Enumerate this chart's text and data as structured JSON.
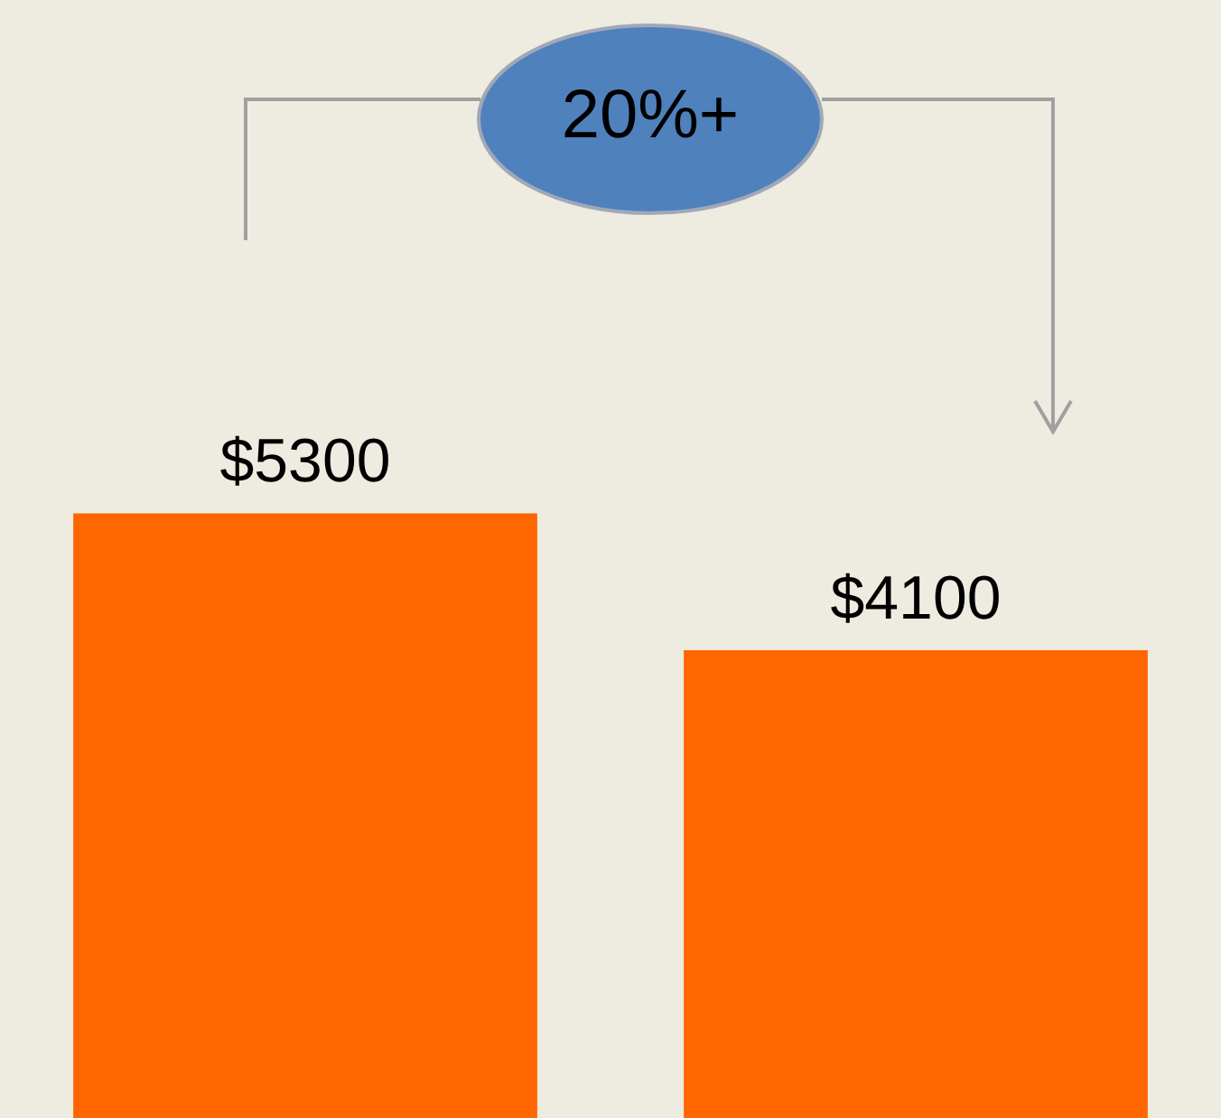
{
  "chart_data": {
    "type": "bar",
    "categories": [
      null,
      null
    ],
    "values": [
      5300,
      4100
    ],
    "value_labels": [
      "$5300",
      "$4100"
    ],
    "color": "#ff6600",
    "annotations": [
      "20%+"
    ]
  }
}
